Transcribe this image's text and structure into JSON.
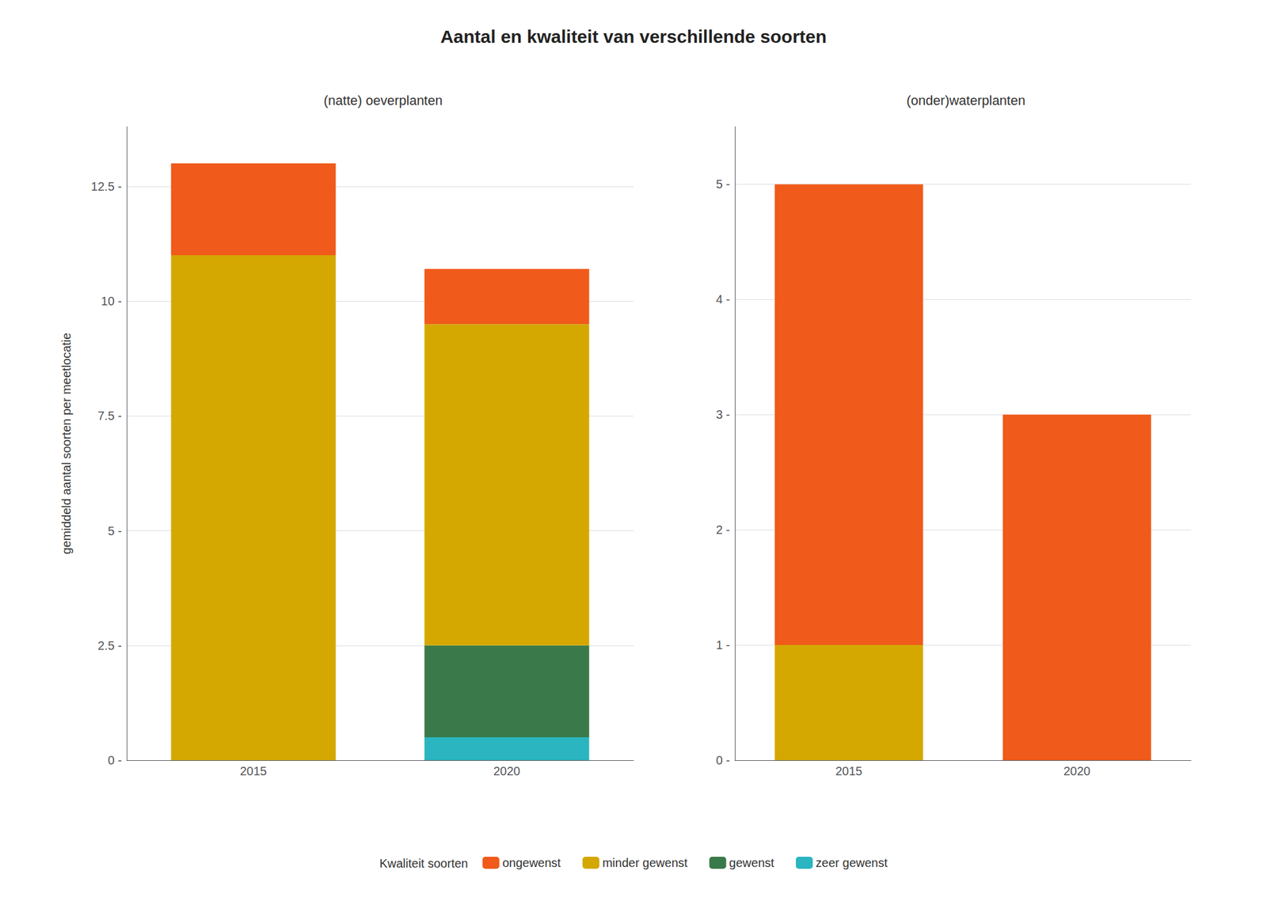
{
  "chart_data": [
    {
      "type": "bar",
      "stacked": true,
      "title": "Aantal en kwaliteit van verschillende soorten",
      "subtitle": "(natte) oeverplanten",
      "ylabel": "gemiddeld aantal soorten per meetlocatie",
      "legend_title": "Kwaliteit soorten",
      "legend": "bottom",
      "grid": true,
      "categories": [
        "2015",
        "2020"
      ],
      "series": [
        {
          "name": "zeer gewenst",
          "color": "#2AB5C0",
          "values": [
            0.0,
            0.5
          ]
        },
        {
          "name": "gewenst",
          "color": "#3A7A4A",
          "values": [
            0.0,
            2.0
          ]
        },
        {
          "name": "minder gewenst",
          "color": "#D4A800",
          "values": [
            11.0,
            7.0
          ]
        },
        {
          "name": "ongewenst",
          "color": "#F05A1A",
          "values": [
            2.0,
            1.2
          ]
        }
      ],
      "ylim": [
        0,
        13.8
      ],
      "yticks": [
        {
          "value": 0.0,
          "label": "0 -"
        },
        {
          "value": 2.5,
          "label": "2.5 -"
        },
        {
          "value": 5.0,
          "label": "5 -"
        },
        {
          "value": 7.5,
          "label": "7.5 -"
        },
        {
          "value": 10.0,
          "label": "10 -"
        },
        {
          "value": 12.5,
          "label": "12.5 -"
        }
      ]
    },
    {
      "type": "bar",
      "stacked": true,
      "subtitle": "(onder)waterplanten",
      "grid": true,
      "categories": [
        "2015",
        "2020"
      ],
      "series": [
        {
          "name": "zeer gewenst",
          "color": "#2AB5C0",
          "values": [
            0.0,
            0.0
          ]
        },
        {
          "name": "gewenst",
          "color": "#3A7A4A",
          "values": [
            0.0,
            0.0
          ]
        },
        {
          "name": "minder gewenst",
          "color": "#D4A800",
          "values": [
            1.0,
            0.0
          ]
        },
        {
          "name": "ongewenst",
          "color": "#F05A1A",
          "values": [
            4.0,
            3.0
          ]
        }
      ],
      "ylim": [
        0,
        5.5
      ],
      "yticks": [
        {
          "value": 0,
          "label": "0 -"
        },
        {
          "value": 1,
          "label": "1 -"
        },
        {
          "value": 2,
          "label": "2 -"
        },
        {
          "value": 3,
          "label": "3 -"
        },
        {
          "value": 4,
          "label": "4 -"
        },
        {
          "value": 5,
          "label": "5 -"
        }
      ]
    }
  ]
}
